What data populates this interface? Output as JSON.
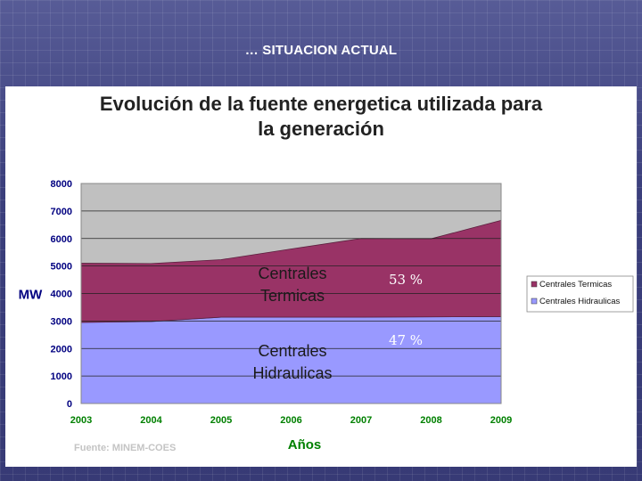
{
  "slide": {
    "title": "… SITUACION ACTUAL"
  },
  "chart_data": {
    "type": "area",
    "title_line1": "Evolución de la fuente energetica utilizada para",
    "title_line2": "la generación",
    "xlabel": "Años",
    "ylabel": "MW",
    "x": [
      "2003",
      "2004",
      "2005",
      "2006",
      "2007",
      "2008",
      "2009"
    ],
    "ylim": [
      0,
      8000
    ],
    "yticks": [
      "0",
      "1000",
      "2000",
      "3000",
      "4000",
      "5000",
      "6000",
      "7000",
      "8000"
    ],
    "series": [
      {
        "name": "Centrales Hidraulicas",
        "values": [
          2950,
          2980,
          3140,
          3140,
          3140,
          3150,
          3160
        ],
        "color": "#9999ff"
      },
      {
        "name": "Centrales Termicas",
        "values": [
          2150,
          2110,
          2090,
          2480,
          2860,
          2840,
          3500
        ],
        "color": "#993366"
      }
    ],
    "background_color": "#c0c0c0",
    "area_labels": {
      "termicas_line1": "Centrales",
      "termicas_line2": "Termicas",
      "hidraulicas_line1": "Centrales",
      "hidraulicas_line2": "Hidraulicas"
    },
    "percent_termicas": "53 %",
    "percent_hidraulicas": "47 %",
    "legend": {
      "position": "right",
      "entries": [
        "Centrales Termicas",
        "Centrales Hidraulicas"
      ]
    },
    "source": "Fuente: MINEM-COES",
    "axis_label_color": "#008000",
    "tick_label_color": "#000080"
  }
}
